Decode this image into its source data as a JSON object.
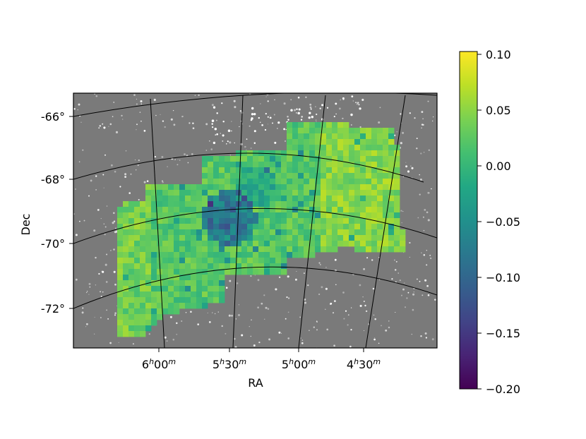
{
  "chart_data": {
    "type": "heatmap",
    "xlabel": "RA",
    "ylabel": "Dec",
    "x_ticks": [
      {
        "h": "6",
        "m": "00"
      },
      {
        "h": "5",
        "m": "30"
      },
      {
        "h": "5",
        "m": "00"
      },
      {
        "h": "4",
        "m": "30"
      }
    ],
    "y_ticks": [
      "-66°",
      "-68°",
      "-70°",
      "-72°"
    ],
    "colorbar": {
      "colormap": "viridis",
      "range": [
        -0.2,
        0.1
      ],
      "ticks": [
        "0.10",
        "0.05",
        "0.00",
        "−0.05",
        "−0.10",
        "−0.15",
        "−0.20"
      ]
    },
    "background": "grayscale star field",
    "grid": true,
    "colors": {
      "viridis": [
        "#440154",
        "#482475",
        "#414487",
        "#355f8d",
        "#2a788e",
        "#21918c",
        "#22a884",
        "#44bf70",
        "#7ad151",
        "#bddf26",
        "#fde725"
      ],
      "grid": "#000000",
      "background": "#7a7a7a"
    }
  }
}
